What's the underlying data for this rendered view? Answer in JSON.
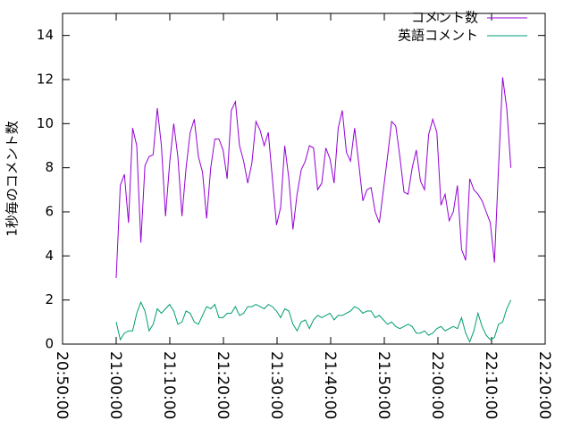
{
  "chart_data": {
    "type": "line",
    "ylabel": "1秒毎のコメント数",
    "x": [
      "21:00:00",
      "21:00:46",
      "21:01:32",
      "21:02:18",
      "21:03:04",
      "21:03:50",
      "21:04:36",
      "21:05:22",
      "21:06:08",
      "21:06:54",
      "21:07:40",
      "21:08:26",
      "21:09:12",
      "21:09:58",
      "21:10:44",
      "21:11:30",
      "21:12:16",
      "21:13:02",
      "21:13:48",
      "21:14:34",
      "21:15:20",
      "21:16:06",
      "21:16:52",
      "21:17:38",
      "21:18:24",
      "21:19:10",
      "21:19:56",
      "21:20:42",
      "21:21:28",
      "21:22:14",
      "21:23:00",
      "21:23:46",
      "21:24:32",
      "21:25:18",
      "21:26:04",
      "21:26:50",
      "21:27:36",
      "21:28:22",
      "21:29:08",
      "21:29:54",
      "21:30:40",
      "21:31:26",
      "21:32:12",
      "21:32:58",
      "21:33:44",
      "21:34:30",
      "21:35:16",
      "21:36:02",
      "21:36:48",
      "21:37:34",
      "21:38:20",
      "21:39:06",
      "21:39:52",
      "21:40:38",
      "21:41:24",
      "21:42:10",
      "21:42:56",
      "21:43:42",
      "21:44:28",
      "21:45:14",
      "21:46:00",
      "21:46:46",
      "21:47:32",
      "21:48:18",
      "21:49:04",
      "21:49:50",
      "21:50:36",
      "21:51:22",
      "21:52:08",
      "21:52:54",
      "21:53:40",
      "21:54:26",
      "21:55:12",
      "21:55:58",
      "21:56:44",
      "21:57:30",
      "21:58:16",
      "21:59:02",
      "21:59:48",
      "22:00:34",
      "22:01:20",
      "22:02:06",
      "22:02:52",
      "22:03:38",
      "22:04:24",
      "22:05:10",
      "22:05:56",
      "22:06:42",
      "22:07:28",
      "22:08:14",
      "22:09:00",
      "22:09:46",
      "22:10:32",
      "22:11:18",
      "22:12:04",
      "22:12:50",
      "22:13:36"
    ],
    "xlim": [
      "20:50:00",
      "22:20:00"
    ],
    "xticks": [
      "20:50:00",
      "21:00:00",
      "21:10:00",
      "21:20:00",
      "21:30:00",
      "21:40:00",
      "21:50:00",
      "22:00:00",
      "22:10:00",
      "22:20:00"
    ],
    "ylim": [
      0,
      15
    ],
    "yticks": [
      0,
      2,
      4,
      6,
      8,
      10,
      12,
      14
    ],
    "grid": false,
    "legend": "top-right",
    "series": [
      {
        "name": "コメント数",
        "color": "#9400d3",
        "values": [
          3.0,
          7.2,
          7.7,
          5.5,
          9.8,
          9.0,
          4.6,
          8.1,
          8.5,
          8.6,
          10.7,
          9.0,
          5.8,
          8.2,
          10.0,
          8.5,
          5.8,
          8.0,
          9.6,
          10.2,
          8.5,
          7.8,
          5.7,
          8.0,
          9.3,
          9.3,
          8.8,
          7.5,
          10.6,
          11.0,
          9.0,
          8.3,
          7.3,
          8.2,
          10.1,
          9.7,
          9.0,
          9.6,
          7.5,
          5.4,
          6.2,
          9.0,
          7.5,
          5.2,
          6.8,
          7.9,
          8.3,
          9.0,
          8.9,
          7.0,
          7.3,
          8.9,
          8.4,
          7.3,
          9.8,
          10.6,
          8.7,
          8.3,
          9.8,
          8.2,
          6.5,
          7.0,
          7.1,
          6.0,
          5.5,
          7.0,
          8.5,
          10.1,
          9.9,
          8.5,
          6.9,
          6.8,
          8.0,
          8.8,
          7.4,
          7.0,
          9.5,
          10.2,
          9.6,
          6.3,
          6.8,
          5.6,
          6.0,
          7.2,
          4.3,
          3.8,
          7.5,
          7.0,
          6.8,
          6.5,
          6.0,
          5.5,
          3.7,
          8.0,
          12.1,
          10.7,
          8.0
        ]
      },
      {
        "name": "英語コメント",
        "color": "#009e73",
        "values": [
          1.0,
          0.2,
          0.5,
          0.6,
          0.6,
          1.4,
          1.9,
          1.5,
          0.6,
          0.9,
          1.6,
          1.4,
          1.6,
          1.8,
          1.5,
          0.9,
          1.0,
          1.5,
          1.4,
          1.0,
          0.9,
          1.3,
          1.7,
          1.6,
          1.8,
          1.2,
          1.2,
          1.4,
          1.4,
          1.7,
          1.3,
          1.4,
          1.7,
          1.7,
          1.8,
          1.7,
          1.6,
          1.8,
          1.7,
          1.5,
          1.2,
          1.6,
          1.5,
          0.9,
          0.6,
          1.0,
          1.1,
          0.7,
          1.1,
          1.3,
          1.2,
          1.3,
          1.4,
          1.1,
          1.3,
          1.3,
          1.4,
          1.5,
          1.7,
          1.6,
          1.4,
          1.5,
          1.5,
          1.2,
          1.3,
          1.1,
          0.9,
          1.0,
          0.8,
          0.7,
          0.8,
          0.9,
          0.8,
          0.5,
          0.5,
          0.6,
          0.4,
          0.5,
          0.7,
          0.8,
          0.6,
          0.7,
          0.8,
          0.7,
          1.2,
          0.5,
          0.1,
          0.6,
          1.4,
          0.8,
          0.4,
          0.2,
          0.3,
          0.9,
          1.0,
          1.6,
          2.0
        ]
      }
    ]
  }
}
